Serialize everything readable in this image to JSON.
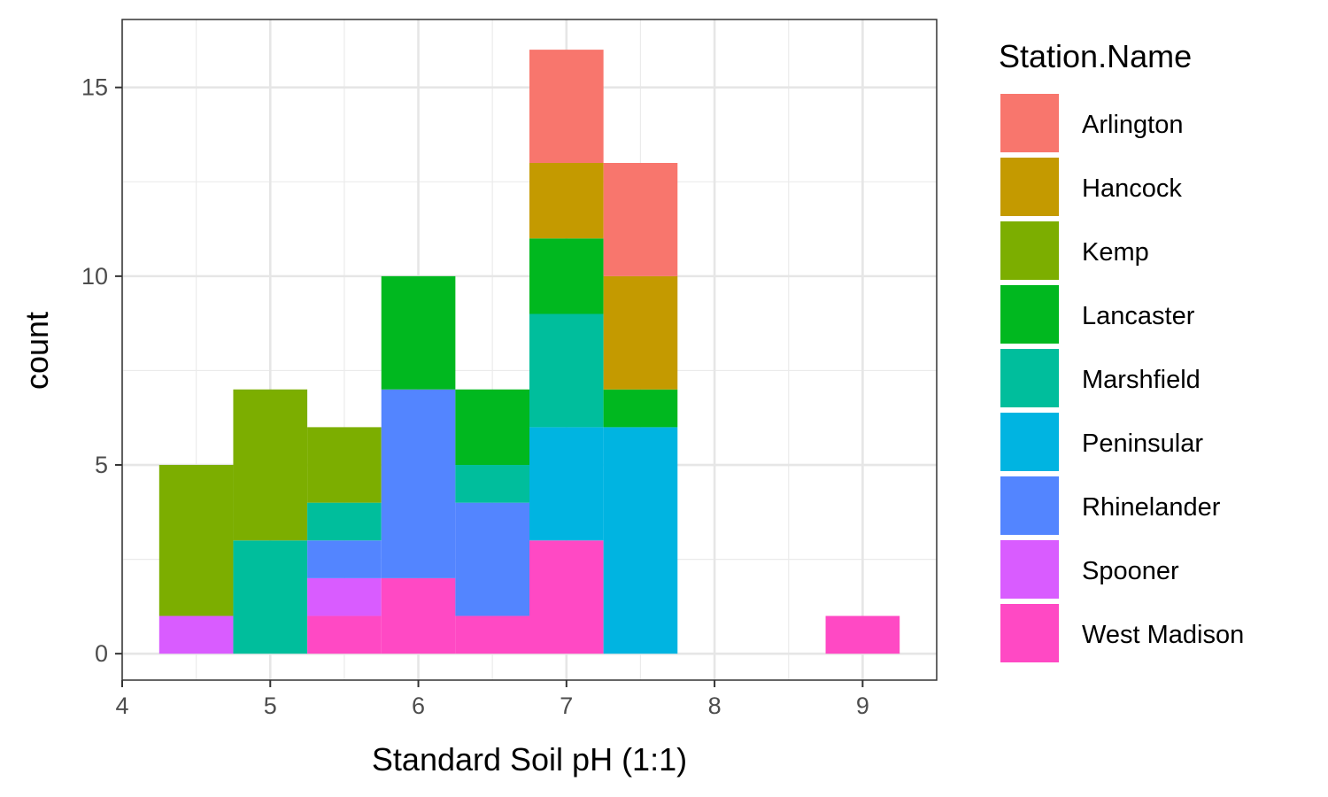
{
  "chart_data": {
    "type": "bar",
    "subtype": "stacked-histogram",
    "xlabel": "Standard Soil pH (1:1)",
    "ylabel": "count",
    "xlim": [
      4,
      9.5
    ],
    "ylim": [
      -0.7,
      16.8
    ],
    "x_ticks": [
      4,
      5,
      6,
      7,
      8,
      9
    ],
    "y_ticks": [
      0,
      5,
      10,
      15
    ],
    "bin_centers": [
      4.5,
      5.0,
      5.5,
      6.0,
      6.5,
      7.0,
      7.5,
      8.0,
      8.5,
      9.0
    ],
    "bin_width": 0.5,
    "grid": true,
    "legend": {
      "title": "Station.Name",
      "position": "right"
    },
    "series": [
      {
        "name": "Arlington",
        "color": "#F8766D",
        "values": [
          0,
          0,
          0,
          0,
          0,
          3,
          3,
          0,
          0,
          0
        ]
      },
      {
        "name": "Hancock",
        "color": "#C49A00",
        "values": [
          0,
          0,
          0,
          0,
          0,
          2,
          3,
          0,
          0,
          0
        ]
      },
      {
        "name": "Kemp",
        "color": "#7CAE00",
        "values": [
          4,
          4,
          2,
          0,
          0,
          0,
          0,
          0,
          0,
          0
        ]
      },
      {
        "name": "Lancaster",
        "color": "#00B81F",
        "values": [
          0,
          0,
          0,
          3,
          2,
          2,
          1,
          0,
          0,
          0
        ]
      },
      {
        "name": "Marshfield",
        "color": "#00BE9C",
        "values": [
          0,
          3,
          1,
          0,
          1,
          3,
          0,
          0,
          0,
          0
        ]
      },
      {
        "name": "Peninsular",
        "color": "#00B4E1",
        "values": [
          0,
          0,
          0,
          0,
          0,
          3,
          6,
          0,
          0,
          0
        ]
      },
      {
        "name": "Rhinelander",
        "color": "#5385FF",
        "values": [
          0,
          0,
          1,
          5,
          3,
          0,
          0,
          0,
          0,
          0
        ]
      },
      {
        "name": "Spooner",
        "color": "#D95CFF",
        "values": [
          1,
          0,
          1,
          0,
          0,
          0,
          0,
          0,
          0,
          0
        ]
      },
      {
        "name": "West Madison",
        "color": "#FF49C4",
        "values": [
          0,
          0,
          1,
          2,
          1,
          3,
          0,
          0,
          0,
          1
        ]
      }
    ]
  }
}
